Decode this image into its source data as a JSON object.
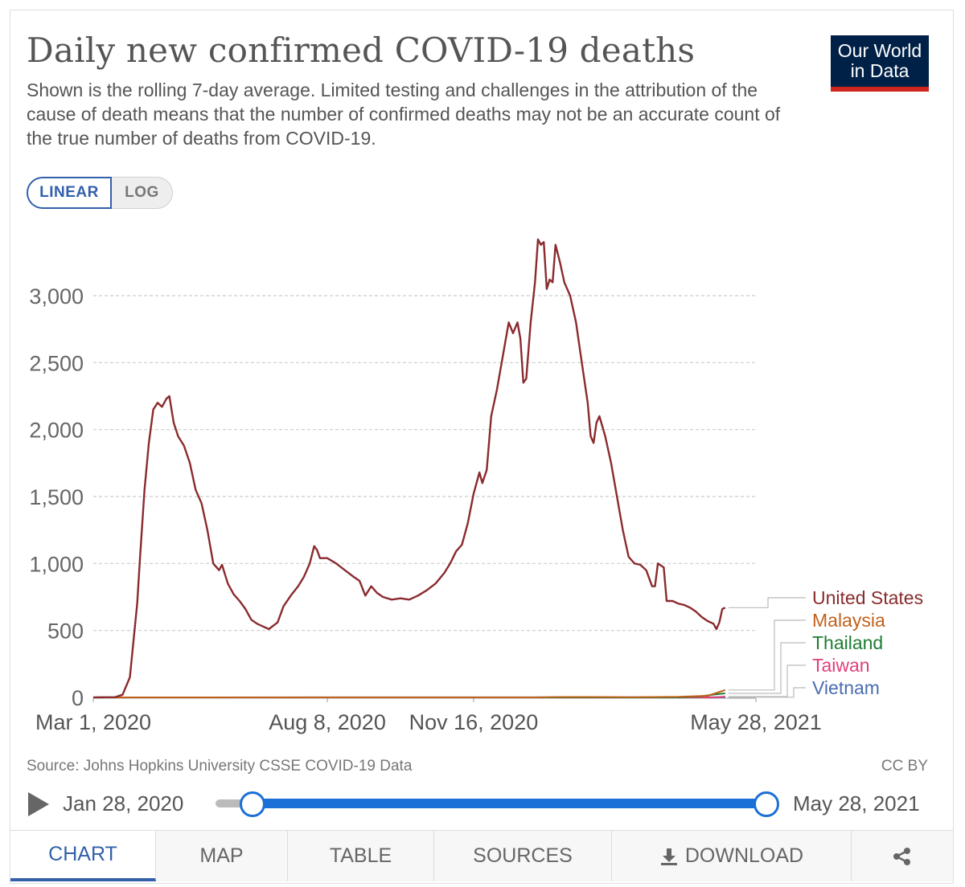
{
  "header": {
    "title": "Daily new confirmed COVID-19 deaths",
    "subtitle": "Shown is the rolling 7-day average. Limited testing and challenges in the attribution of the cause of death means that the number of confirmed deaths may not be an accurate count of the true number of deaths from COVID-19.",
    "logo_line1": "Our World",
    "logo_line2": "in Data"
  },
  "scale_toggle": {
    "linear_label": "LINEAR",
    "log_label": "LOG",
    "selected": "LINEAR"
  },
  "footer": {
    "source": "Source: Johns Hopkins University CSSE COVID-19 Data",
    "license": "CC BY"
  },
  "timeline": {
    "start_label": "Jan 28, 2020",
    "end_label": "May 28, 2021"
  },
  "tabs": {
    "chart": "CHART",
    "map": "MAP",
    "table": "TABLE",
    "sources": "SOURCES",
    "download": "DOWNLOAD"
  },
  "colors": {
    "united_states": "#8a2b2e",
    "malaysia": "#c2601a",
    "thailand": "#1e7c32",
    "taiwan": "#e0407a",
    "vietnam": "#4a6cb0",
    "accent": "#3360a9"
  },
  "chart_data": {
    "type": "line",
    "title": "Daily new confirmed COVID-19 deaths",
    "ylabel": "",
    "xlabel": "",
    "ylim": [
      0,
      3200
    ],
    "yticks": [
      0,
      500,
      1000,
      1500,
      2000,
      2500,
      3000
    ],
    "ytick_labels": [
      "0",
      "500",
      "1,000",
      "1,500",
      "2,000",
      "2,500",
      "3,000"
    ],
    "xlim_days": [
      0,
      453
    ],
    "xticks": [
      {
        "day": 0,
        "label": "Mar 1, 2020"
      },
      {
        "day": 160,
        "label": "Aug 8, 2020"
      },
      {
        "day": 260,
        "label": "Nov 16, 2020"
      },
      {
        "day": 453,
        "label": "May 28, 2021"
      }
    ],
    "x_unit": "days since Mar 1, 2020",
    "grid": "horizontal dashed",
    "series": [
      {
        "name": "United States",
        "color": "#8a2b2e",
        "points": [
          [
            0,
            0
          ],
          [
            15,
            2
          ],
          [
            20,
            20
          ],
          [
            25,
            150
          ],
          [
            30,
            700
          ],
          [
            32,
            1050
          ],
          [
            35,
            1550
          ],
          [
            38,
            1900
          ],
          [
            41,
            2150
          ],
          [
            44,
            2200
          ],
          [
            47,
            2170
          ],
          [
            50,
            2230
          ],
          [
            52,
            2250
          ],
          [
            55,
            2050
          ],
          [
            58,
            1950
          ],
          [
            62,
            1880
          ],
          [
            66,
            1750
          ],
          [
            70,
            1550
          ],
          [
            74,
            1450
          ],
          [
            78,
            1250
          ],
          [
            82,
            1000
          ],
          [
            86,
            950
          ],
          [
            88,
            990
          ],
          [
            92,
            850
          ],
          [
            96,
            770
          ],
          [
            100,
            720
          ],
          [
            104,
            660
          ],
          [
            108,
            580
          ],
          [
            112,
            550
          ],
          [
            116,
            530
          ],
          [
            120,
            510
          ],
          [
            126,
            560
          ],
          [
            130,
            680
          ],
          [
            135,
            760
          ],
          [
            140,
            830
          ],
          [
            144,
            900
          ],
          [
            148,
            1000
          ],
          [
            151,
            1130
          ],
          [
            153,
            1100
          ],
          [
            155,
            1040
          ],
          [
            160,
            1040
          ],
          [
            166,
            1000
          ],
          [
            172,
            950
          ],
          [
            178,
            900
          ],
          [
            182,
            870
          ],
          [
            186,
            760
          ],
          [
            190,
            830
          ],
          [
            194,
            780
          ],
          [
            198,
            750
          ],
          [
            204,
            730
          ],
          [
            210,
            740
          ],
          [
            216,
            730
          ],
          [
            222,
            760
          ],
          [
            228,
            800
          ],
          [
            234,
            850
          ],
          [
            240,
            930
          ],
          [
            244,
            1000
          ],
          [
            248,
            1090
          ],
          [
            252,
            1140
          ],
          [
            256,
            1300
          ],
          [
            260,
            1520
          ],
          [
            264,
            1680
          ],
          [
            266,
            1600
          ],
          [
            269,
            1700
          ],
          [
            272,
            2100
          ],
          [
            276,
            2300
          ],
          [
            280,
            2550
          ],
          [
            284,
            2800
          ],
          [
            287,
            2720
          ],
          [
            290,
            2800
          ],
          [
            292,
            2680
          ],
          [
            294,
            2350
          ],
          [
            296,
            2380
          ],
          [
            299,
            2800
          ],
          [
            302,
            3100
          ],
          [
            304,
            3420
          ],
          [
            306,
            3380
          ],
          [
            308,
            3400
          ],
          [
            310,
            3050
          ],
          [
            312,
            3120
          ],
          [
            314,
            3100
          ],
          [
            316,
            3380
          ],
          [
            319,
            3250
          ],
          [
            322,
            3100
          ],
          [
            326,
            3000
          ],
          [
            330,
            2800
          ],
          [
            334,
            2500
          ],
          [
            338,
            2200
          ],
          [
            340,
            1950
          ],
          [
            342,
            1900
          ],
          [
            344,
            2050
          ],
          [
            346,
            2100
          ],
          [
            350,
            1950
          ],
          [
            354,
            1750
          ],
          [
            358,
            1500
          ],
          [
            362,
            1250
          ],
          [
            366,
            1050
          ],
          [
            370,
            1000
          ],
          [
            374,
            990
          ],
          [
            378,
            950
          ],
          [
            382,
            830
          ],
          [
            384,
            830
          ],
          [
            386,
            1000
          ],
          [
            390,
            970
          ],
          [
            392,
            720
          ],
          [
            396,
            720
          ],
          [
            400,
            700
          ],
          [
            404,
            690
          ],
          [
            408,
            670
          ],
          [
            412,
            640
          ],
          [
            416,
            600
          ],
          [
            420,
            570
          ],
          [
            424,
            550
          ],
          [
            426,
            510
          ],
          [
            428,
            560
          ],
          [
            430,
            660
          ],
          [
            432,
            670
          ]
        ]
      },
      {
        "name": "Malaysia",
        "color": "#c2601a",
        "points": [
          [
            0,
            0
          ],
          [
            300,
            0
          ],
          [
            320,
            3
          ],
          [
            340,
            3
          ],
          [
            370,
            2
          ],
          [
            400,
            4
          ],
          [
            420,
            12
          ],
          [
            432,
            55
          ]
        ]
      },
      {
        "name": "Thailand",
        "color": "#1e7c32",
        "points": [
          [
            0,
            0
          ],
          [
            400,
            0
          ],
          [
            415,
            8
          ],
          [
            425,
            22
          ],
          [
            432,
            30
          ]
        ]
      },
      {
        "name": "Taiwan",
        "color": "#e0407a",
        "points": [
          [
            0,
            0
          ],
          [
            425,
            0
          ],
          [
            432,
            6
          ]
        ]
      },
      {
        "name": "Vietnam",
        "color": "#4a6cb0",
        "points": [
          [
            0,
            0
          ],
          [
            432,
            1
          ]
        ]
      }
    ],
    "legend": "right, at line ends"
  }
}
